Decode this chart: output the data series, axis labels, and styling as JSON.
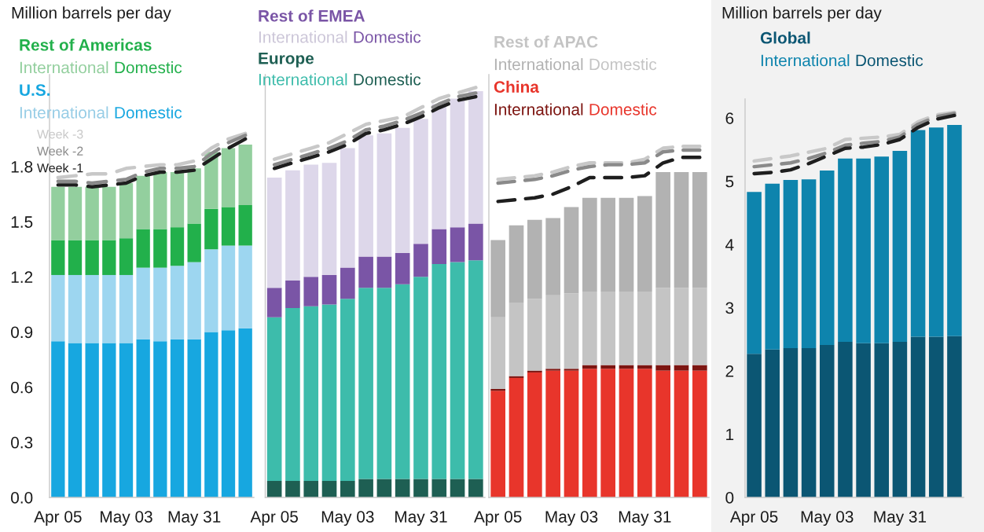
{
  "chart_data": [
    {
      "type": "bar",
      "stacked": true,
      "ylabel": "Million barrels per day",
      "legend": "top left",
      "line_style": "dashed",
      "categories": [
        "Apr 05",
        null,
        null,
        null,
        "May 03",
        null,
        null,
        null,
        "May 31",
        null,
        null,
        null
      ],
      "ylim": [
        0,
        2.3
      ],
      "yticks": [
        {
          "value": 0,
          "label": "0.0"
        },
        0.3,
        0.6,
        0.9,
        1.2,
        1.5,
        1.8
      ],
      "annotations": [
        "Rest of Americas",
        "U.S."
      ],
      "series": [
        {
          "name": "Domestic",
          "color": "#17a7e0",
          "values": [
            0.85,
            0.84,
            0.84,
            0.84,
            0.84,
            0.86,
            0.85,
            0.86,
            0.86,
            0.9,
            0.91,
            0.92
          ]
        },
        {
          "name": "International",
          "color": "#9dd6f0",
          "values": [
            0.36,
            0.37,
            0.37,
            0.37,
            0.37,
            0.39,
            0.4,
            0.4,
            0.42,
            0.45,
            0.46,
            0.45
          ]
        },
        {
          "name": "Domestic",
          "color": "#22b04b",
          "values": [
            0.19,
            0.19,
            0.19,
            0.19,
            0.2,
            0.21,
            0.21,
            0.21,
            0.21,
            0.22,
            0.21,
            0.22
          ]
        },
        {
          "name": "International",
          "color": "#93cf9e",
          "values": [
            0.29,
            0.29,
            0.29,
            0.29,
            0.3,
            0.29,
            0.31,
            0.3,
            0.3,
            0.31,
            0.32,
            0.33
          ]
        },
        {
          "name": "Week -3",
          "type": "line",
          "color": "#c8c8c8",
          "values": [
            1.74,
            1.75,
            1.76,
            1.76,
            1.79,
            1.8,
            1.81,
            1.81,
            1.83,
            1.9,
            1.95,
            1.98
          ]
        },
        {
          "name": "Week -2",
          "type": "line",
          "color": "#8a8a8a",
          "values": [
            1.72,
            1.72,
            1.71,
            1.72,
            1.73,
            1.77,
            1.79,
            1.79,
            1.8,
            1.87,
            1.93,
            1.97
          ]
        },
        {
          "name": "Week -1",
          "type": "line",
          "color": "#1e1e1e",
          "values": [
            1.7,
            1.7,
            1.69,
            1.7,
            1.71,
            1.75,
            1.77,
            1.77,
            1.78,
            1.84,
            1.9,
            1.95
          ]
        }
      ]
    },
    {
      "type": "bar",
      "stacked": true,
      "legend": "top left",
      "line_style": "dashed",
      "tick_labels": "x",
      "categories": [
        "Apr 05",
        null,
        null,
        null,
        "May 03",
        null,
        null,
        null,
        "May 31",
        null,
        null,
        null
      ],
      "ylim": [
        0,
        2.3
      ],
      "annotations": [
        "Rest of EMEA",
        "Europe"
      ],
      "series": [
        {
          "name": "Domestic",
          "color": "#1e5f53",
          "values": [
            0.09,
            0.09,
            0.09,
            0.09,
            0.09,
            0.1,
            0.1,
            0.1,
            0.1,
            0.1,
            0.1,
            0.1
          ]
        },
        {
          "name": "International",
          "color": "#3dbcab",
          "values": [
            0.89,
            0.94,
            0.95,
            0.96,
            0.99,
            1.04,
            1.04,
            1.06,
            1.1,
            1.17,
            1.18,
            1.19
          ]
        },
        {
          "name": "Domestic",
          "color": "#7a55a6",
          "values": [
            0.16,
            0.15,
            0.16,
            0.16,
            0.17,
            0.17,
            0.17,
            0.17,
            0.18,
            0.19,
            0.19,
            0.2
          ]
        },
        {
          "name": "International",
          "color": "#ddd7ea",
          "values": [
            0.6,
            0.6,
            0.61,
            0.61,
            0.65,
            0.66,
            0.67,
            0.68,
            0.68,
            0.68,
            0.7,
            0.72
          ]
        },
        {
          "type": "line",
          "color": "#c8c8c8",
          "values": [
            1.84,
            1.87,
            1.9,
            1.93,
            1.98,
            2.03,
            2.05,
            2.07,
            2.12,
            2.17,
            2.2,
            2.23
          ]
        },
        {
          "type": "line",
          "color": "#8a8a8a",
          "values": [
            1.81,
            1.84,
            1.87,
            1.9,
            1.94,
            2.0,
            2.02,
            2.05,
            2.09,
            2.14,
            2.18,
            2.2
          ]
        },
        {
          "type": "line",
          "color": "#1e1e1e",
          "values": [
            1.79,
            1.82,
            1.85,
            1.88,
            1.92,
            1.98,
            2.0,
            2.03,
            2.07,
            2.12,
            2.16,
            2.18
          ]
        }
      ]
    },
    {
      "type": "bar",
      "stacked": true,
      "legend": "top left",
      "line_style": "dashed",
      "tick_labels": "x",
      "categories": [
        "Apr 05",
        null,
        null,
        null,
        "May 03",
        null,
        null,
        null,
        "May 31",
        null,
        null,
        null
      ],
      "ylim": [
        0,
        2.3
      ],
      "annotations": [
        "Rest of APAC",
        "China"
      ],
      "series": [
        {
          "name": "Domestic",
          "color": "#e8352b",
          "values": [
            0.58,
            0.65,
            0.68,
            0.69,
            0.69,
            0.7,
            0.7,
            0.7,
            0.7,
            0.69,
            0.69,
            0.69
          ]
        },
        {
          "name": "International",
          "color": "#7d1511",
          "values": [
            0.01,
            0.01,
            0.01,
            0.01,
            0.01,
            0.02,
            0.02,
            0.02,
            0.02,
            0.03,
            0.03,
            0.03
          ]
        },
        {
          "name": "Domestic",
          "color": "#c4c4c4",
          "values": [
            0.39,
            0.4,
            0.39,
            0.4,
            0.41,
            0.4,
            0.4,
            0.4,
            0.4,
            0.42,
            0.42,
            0.42
          ]
        },
        {
          "name": "International",
          "color": "#b2b2b2",
          "values": [
            0.42,
            0.42,
            0.43,
            0.42,
            0.47,
            0.51,
            0.51,
            0.51,
            0.52,
            0.63,
            0.63,
            0.63
          ]
        },
        {
          "type": "line",
          "color": "#c8c8c8",
          "values": [
            1.73,
            1.74,
            1.75,
            1.77,
            1.8,
            1.82,
            1.82,
            1.82,
            1.84,
            1.9,
            1.91,
            1.91
          ]
        },
        {
          "type": "line",
          "color": "#8a8a8a",
          "values": [
            1.71,
            1.72,
            1.73,
            1.75,
            1.78,
            1.8,
            1.81,
            1.81,
            1.82,
            1.88,
            1.89,
            1.89
          ]
        },
        {
          "type": "line",
          "color": "#1e1e1e",
          "values": [
            1.61,
            1.62,
            1.63,
            1.65,
            1.69,
            1.74,
            1.74,
            1.74,
            1.75,
            1.82,
            1.85,
            1.85
          ]
        }
      ]
    },
    {
      "type": "bar",
      "stacked": true,
      "ylabel": "Million barrels per day",
      "legend": "top left",
      "line_style": "dashed",
      "categories": [
        "Apr 05",
        null,
        null,
        null,
        "May 03",
        null,
        null,
        null,
        "May 31",
        null,
        null,
        null
      ],
      "ylim": [
        0,
        6.3
      ],
      "yticks": [
        0,
        1,
        2,
        3,
        4,
        5,
        6
      ],
      "annotations": [
        "Global"
      ],
      "series": [
        {
          "name": "Domestic",
          "color": "#0b5673",
          "values": [
            2.27,
            2.34,
            2.36,
            2.36,
            2.41,
            2.46,
            2.44,
            2.44,
            2.46,
            2.54,
            2.54,
            2.55
          ]
        },
        {
          "name": "International",
          "color": "#0e84ad",
          "values": [
            2.56,
            2.62,
            2.66,
            2.67,
            2.76,
            2.9,
            2.92,
            2.95,
            3.02,
            3.27,
            3.31,
            3.34
          ]
        },
        {
          "type": "line",
          "color": "#c8c8c8",
          "values": [
            5.32,
            5.36,
            5.4,
            5.46,
            5.52,
            5.66,
            5.68,
            5.7,
            5.74,
            5.94,
            6.05,
            6.09
          ]
        },
        {
          "type": "line",
          "color": "#8a8a8a",
          "values": [
            5.23,
            5.26,
            5.29,
            5.36,
            5.45,
            5.57,
            5.6,
            5.63,
            5.7,
            5.9,
            6.02,
            6.07
          ]
        },
        {
          "type": "line",
          "color": "#1e1e1e",
          "values": [
            5.12,
            5.14,
            5.18,
            5.28,
            5.4,
            5.52,
            5.54,
            5.58,
            5.66,
            5.85,
            5.98,
            6.04
          ]
        }
      ]
    }
  ]
}
